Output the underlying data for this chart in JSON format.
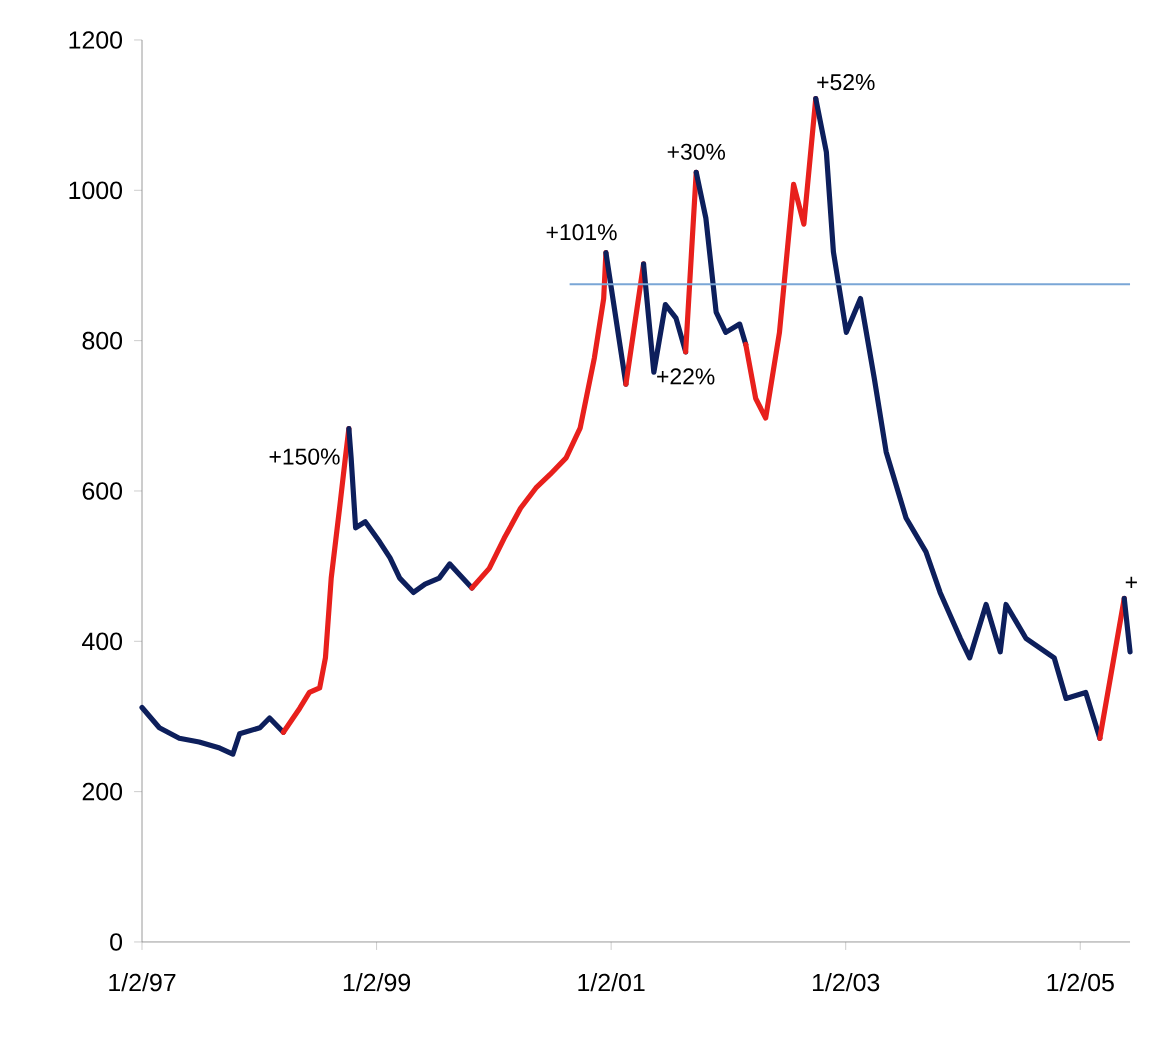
{
  "chart_data": {
    "type": "line",
    "xlim": [
      "1997-01-02",
      "2005-06-06"
    ],
    "ylim": [
      0,
      1200
    ],
    "xticks": [
      {
        "value": "1997-01-02",
        "label": "1/2/97"
      },
      {
        "value": "1999-01-02",
        "label": "1/2/99"
      },
      {
        "value": "2001-01-02",
        "label": "1/2/01"
      },
      {
        "value": "2003-01-02",
        "label": "1/2/03"
      },
      {
        "value": "2005-01-02",
        "label": "1/2/05"
      }
    ],
    "yticks": [
      0,
      200,
      400,
      600,
      800,
      1000,
      1200
    ],
    "series": [
      {
        "color": "#0d1f5c",
        "x": [
          "1997-01-02",
          "1997-02-25",
          "1997-04-28",
          "1997-06-29",
          "1997-09-01",
          "1997-10-12",
          "1997-11-02",
          "1998-01-04",
          "1998-02-03",
          "1998-03-18"
        ],
        "values": [
          312,
          285,
          271,
          266,
          258,
          250,
          277,
          285,
          298,
          279
        ]
      },
      {
        "color": "#e8201c",
        "x": [
          "1998-03-18",
          "1998-05-08",
          "1998-06-07",
          "1998-07-09",
          "1998-07-27",
          "1998-08-14",
          "1998-09-09",
          "1998-09-27",
          "1998-10-08"
        ],
        "values": [
          279,
          311,
          332,
          338,
          378,
          484,
          577,
          644,
          683
        ]
      },
      {
        "color": "#0d1f5c",
        "x": [
          "1998-10-08",
          "1998-10-15",
          "1998-10-29",
          "1998-11-28",
          "1999-01-12",
          "1999-02-13",
          "1999-03-15",
          "1999-04-27",
          "1999-06-02",
          "1999-07-16",
          "1999-08-18",
          "1999-09-17",
          "1999-10-26"
        ],
        "values": [
          683,
          644,
          551,
          559,
          532,
          511,
          484,
          465,
          476,
          484,
          503,
          489,
          471
        ]
      },
      {
        "color": "#e8201c",
        "x": [
          "1999-10-26",
          "1999-12-19",
          "2000-02-03",
          "2000-03-25",
          "2000-05-12",
          "2000-06-25",
          "2000-08-14",
          "2000-09-27",
          "2000-11-10",
          "2000-12-09",
          "2000-12-16"
        ],
        "values": [
          471,
          497,
          537,
          577,
          604,
          622,
          644,
          684,
          777,
          856,
          917
        ]
      },
      {
        "color": "#0d1f5c",
        "x": [
          "2000-12-16",
          "2001-02-17"
        ],
        "values": [
          917,
          742
        ]
      },
      {
        "color": "#e8201c",
        "x": [
          "2001-02-17",
          "2001-04-13"
        ],
        "values": [
          742,
          902
        ]
      },
      {
        "color": "#0d1f5c",
        "x": [
          "2001-04-13",
          "2001-05-15",
          "2001-06-20",
          "2001-07-23",
          "2001-08-22"
        ],
        "values": [
          902,
          758,
          848,
          830,
          785
        ]
      },
      {
        "color": "#e8201c",
        "x": [
          "2001-08-22",
          "2001-09-24"
        ],
        "values": [
          785,
          1024
        ]
      },
      {
        "color": "#0d1f5c",
        "x": [
          "2001-09-24",
          "2001-10-24",
          "2001-11-25",
          "2001-12-25",
          "2002-02-06",
          "2002-02-25"
        ],
        "values": [
          1024,
          963,
          838,
          811,
          822,
          795
        ]
      },
      {
        "color": "#e8201c",
        "x": [
          "2002-02-25",
          "2002-03-28",
          "2002-04-28",
          "2002-06-10",
          "2002-07-24",
          "2002-08-25",
          "2002-10-01"
        ],
        "values": [
          795,
          723,
          697,
          811,
          1008,
          955,
          1122
        ]
      },
      {
        "color": "#0d1f5c",
        "x": [
          "2002-10-01",
          "2002-11-03",
          "2002-11-25",
          "2003-01-04",
          "2003-02-17",
          "2003-04-01",
          "2003-05-08",
          "2003-07-09",
          "2003-09-09",
          "2003-10-23",
          "2003-12-25",
          "2004-01-23",
          "2004-03-14",
          "2004-04-27",
          "2004-05-15",
          "2004-07-16",
          "2004-10-12",
          "2004-11-18",
          "2005-01-19",
          "2005-03-04"
        ],
        "values": [
          1122,
          1051,
          918,
          811,
          856,
          750,
          652,
          564,
          519,
          465,
          404,
          378,
          449,
          386,
          449,
          404,
          378,
          324,
          332,
          271
        ]
      },
      {
        "color": "#e8201c",
        "x": [
          "2005-03-04",
          "2005-05-19"
        ],
        "values": [
          271,
          457
        ]
      },
      {
        "color": "#0d1f5c",
        "x": [
          "2005-05-19",
          "2005-06-06"
        ],
        "values": [
          457,
          386
        ]
      },
      {
        "color": "#7aa6d6",
        "x": [
          "2000-08-25",
          "2005-06-06"
        ],
        "values": [
          875,
          875
        ]
      }
    ],
    "annotations": [
      {
        "text": "+150%",
        "x": "1998-10-08",
        "y": 683
      },
      {
        "text": "+101%",
        "x": "2000-12-16",
        "y": 917
      },
      {
        "text": "+30%",
        "x": "2001-09-24",
        "y": 1024
      },
      {
        "text": "+22%",
        "x": "2001-08-22",
        "y": 785
      },
      {
        "text": "+52%",
        "x": "2002-10-01",
        "y": 1122
      },
      {
        "text": "+",
        "x": "2005-05-19",
        "y": 457
      }
    ]
  }
}
